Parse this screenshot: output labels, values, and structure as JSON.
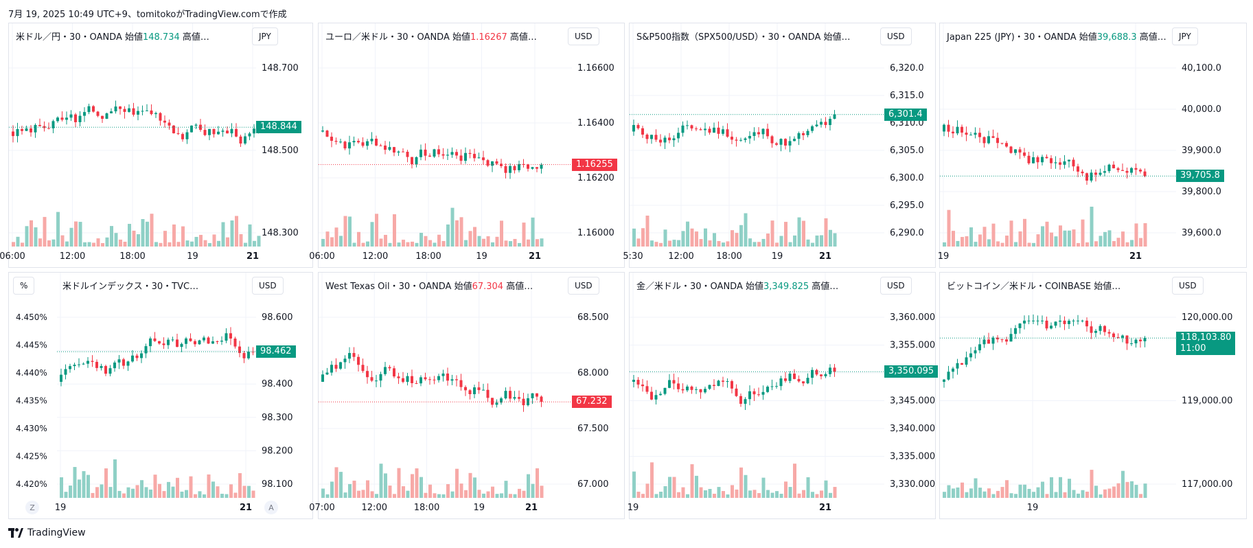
{
  "header": {
    "text": "7月 19, 2025 10:49 UTC+9、tomitokoがTradingView.comで作成"
  },
  "footer": {
    "brand": "TradingView"
  },
  "colors": {
    "up": "#089981",
    "down": "#f23645",
    "volUp": "#8fd0c6",
    "volDown": "#f7a9a7",
    "grid": "#f0f3fa",
    "line2": "#c6b7e4"
  },
  "panels": [
    {
      "symbol": "米ドル／円・30・OANDA",
      "open_label": "始値",
      "open": "148.734",
      "open_dir": "up",
      "more": "高値…",
      "currency": "JPY",
      "y_ticks": [
        "148.700",
        "148.500",
        "148.300"
      ],
      "x_ticks": [
        "06:00",
        "12:00",
        "18:00",
        "19",
        "21"
      ],
      "last_price": "148.844",
      "last_dir": "up",
      "last_sub": ""
    },
    {
      "symbol": "ユーロ／米ドル・30・OANDA",
      "open_label": "始値",
      "open": "1.16267",
      "open_dir": "dn",
      "more": "高値…",
      "currency": "USD",
      "y_ticks": [
        "1.16600",
        "1.16400",
        "1.16200",
        "1.16000"
      ],
      "x_ticks": [
        "06:00",
        "12:00",
        "18:00",
        "19",
        "21"
      ],
      "last_price": "1.16255",
      "last_dir": "dn",
      "last_sub": ""
    },
    {
      "symbol": "S&P500指数（SPX500/USD）・30・OANDA",
      "open_label": "始値…",
      "open": "",
      "open_dir": "up",
      "more": "",
      "currency": "USD",
      "y_ticks": [
        "6,320.0",
        "6,315.0",
        "6,310.0",
        "6,305.0",
        "6,300.0",
        "6,295.0",
        "6,290.0"
      ],
      "x_ticks": [
        "5:30",
        "12:00",
        "18:00",
        "19",
        "21"
      ],
      "last_price": "6,301.4",
      "last_dir": "up",
      "last_sub": ""
    },
    {
      "symbol": "Japan 225 (JPY)・30・OANDA",
      "open_label": "始値",
      "open": "39,688.3",
      "open_dir": "up",
      "more": "高値…",
      "currency": "JPY",
      "y_ticks": [
        "40,100.0",
        "40,000.0",
        "39,900.0",
        "39,800.0",
        "39,600.0"
      ],
      "x_ticks": [
        "19",
        "21"
      ],
      "last_price": "39,705.8",
      "last_dir": "up",
      "last_sub": ""
    },
    {
      "symbol": "米ドルインデックス・30・TVC…",
      "open_label": "",
      "open": "",
      "open_dir": "up",
      "more": "",
      "currency": "USD",
      "pct_label": "%",
      "y_ticks": [
        "98.600",
        "98.500",
        "98.400",
        "98.300",
        "98.200",
        "98.100"
      ],
      "left_ticks": [
        "4.450%",
        "4.445%",
        "4.440%",
        "4.435%",
        "4.430%",
        "4.425%",
        "4.420%"
      ],
      "x_ticks": [
        "19",
        "21"
      ],
      "last_price": "98.462",
      "last_dir": "up",
      "last_sub": "",
      "corner_left": "Z",
      "corner_right": "A"
    },
    {
      "symbol": "West Texas Oil・30・OANDA",
      "open_label": "始値",
      "open": "67.304",
      "open_dir": "dn",
      "more": "高値…",
      "currency": "USD",
      "y_ticks": [
        "68.500",
        "68.000",
        "67.500",
        "67.000"
      ],
      "x_ticks": [
        "07:00",
        "12:00",
        "18:00",
        "19",
        "21"
      ],
      "last_price": "67.232",
      "last_dir": "dn",
      "last_sub": ""
    },
    {
      "symbol": "金／米ドル・30・OANDA",
      "open_label": "始値",
      "open": "3,349.825",
      "open_dir": "up",
      "more": "高値…",
      "currency": "USD",
      "y_ticks": [
        "3,360.000",
        "3,355.000",
        "3,350.000",
        "3,345.000",
        "3,340.000",
        "3,335.000",
        "3,330.000"
      ],
      "x_ticks": [
        "19",
        "21"
      ],
      "last_price": "3,350.095",
      "last_dir": "up",
      "last_sub": ""
    },
    {
      "symbol": "ビットコイン／米ドル・COINBASE",
      "open_label": "始値…",
      "open": "",
      "open_dir": "up",
      "more": "",
      "currency": "USD",
      "y_ticks": [
        "120,000.00",
        "119,000.00",
        "117,000.00"
      ],
      "x_ticks": [
        "19"
      ],
      "last_price": "118,103.80",
      "last_dir": "up",
      "last_sub": "11:00"
    }
  ]
}
